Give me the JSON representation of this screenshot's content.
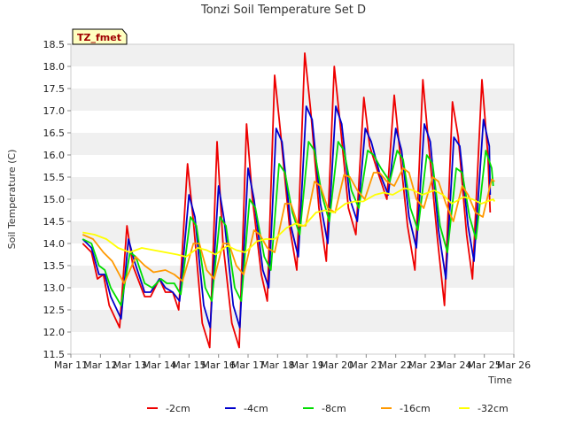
{
  "chart_data": {
    "type": "line",
    "title": "Tonzi Soil Temperature Set D",
    "xlabel": "Time",
    "ylabel": "Soil Temperature (C)",
    "badge": "TZ_fmet",
    "xlim": [
      11,
      26
    ],
    "ylim": [
      11.5,
      18.5
    ],
    "x_ticks": [
      11,
      12,
      13,
      14,
      15,
      16,
      17,
      18,
      19,
      20,
      21,
      22,
      23,
      24,
      25,
      26
    ],
    "x_tick_labels": [
      "Mar 11",
      "Mar 12",
      "Mar 13",
      "Mar 14",
      "Mar 15",
      "Mar 16",
      "Mar 17",
      "Mar 18",
      "Mar 19",
      "Mar 20",
      "Mar 21",
      "Mar 22",
      "Mar 23",
      "Mar 24",
      "Mar 25",
      "Mar 26"
    ],
    "y_ticks": [
      11.5,
      12.0,
      12.5,
      13.0,
      13.5,
      14.0,
      14.5,
      15.0,
      15.5,
      16.0,
      16.5,
      17.0,
      17.5,
      18.0,
      18.5
    ],
    "y_tick_labels": [
      "11.5",
      "12.0",
      "12.5",
      "13.0",
      "13.5",
      "14.0",
      "14.5",
      "15.0",
      "15.5",
      "16.0",
      "16.5",
      "17.0",
      "17.5",
      "18.0",
      "18.5"
    ],
    "grid": "horizontal bands",
    "legend_position": "bottom",
    "series": [
      {
        "name": "-2cm",
        "color": "#ee0000",
        "points": [
          [
            11.4,
            14.0
          ],
          [
            11.7,
            13.8
          ],
          [
            11.9,
            13.2
          ],
          [
            12.1,
            13.3
          ],
          [
            12.3,
            12.6
          ],
          [
            12.65,
            12.1
          ],
          [
            12.9,
            14.4
          ],
          [
            13.1,
            13.5
          ],
          [
            13.5,
            12.8
          ],
          [
            13.7,
            12.8
          ],
          [
            14.0,
            13.2
          ],
          [
            14.2,
            12.9
          ],
          [
            14.45,
            12.9
          ],
          [
            14.65,
            12.5
          ],
          [
            14.95,
            15.8
          ],
          [
            15.15,
            14.5
          ],
          [
            15.45,
            12.2
          ],
          [
            15.7,
            11.65
          ],
          [
            15.95,
            16.3
          ],
          [
            16.15,
            14.0
          ],
          [
            16.45,
            12.2
          ],
          [
            16.7,
            11.65
          ],
          [
            16.95,
            16.7
          ],
          [
            17.15,
            15.0
          ],
          [
            17.45,
            13.3
          ],
          [
            17.65,
            12.7
          ],
          [
            17.9,
            17.8
          ],
          [
            18.1,
            16.5
          ],
          [
            18.4,
            14.4
          ],
          [
            18.65,
            13.4
          ],
          [
            18.92,
            18.3
          ],
          [
            19.12,
            17.0
          ],
          [
            19.4,
            14.8
          ],
          [
            19.65,
            13.6
          ],
          [
            19.92,
            18.0
          ],
          [
            20.12,
            16.7
          ],
          [
            20.4,
            14.8
          ],
          [
            20.65,
            14.2
          ],
          [
            20.92,
            17.3
          ],
          [
            21.12,
            16.2
          ],
          [
            21.4,
            15.6
          ],
          [
            21.7,
            15.0
          ],
          [
            21.95,
            17.35
          ],
          [
            22.15,
            16.0
          ],
          [
            22.4,
            14.4
          ],
          [
            22.65,
            13.4
          ],
          [
            22.92,
            17.7
          ],
          [
            23.12,
            16.2
          ],
          [
            23.4,
            14.2
          ],
          [
            23.65,
            12.6
          ],
          [
            23.92,
            17.2
          ],
          [
            24.12,
            16.4
          ],
          [
            24.4,
            14.2
          ],
          [
            24.6,
            13.2
          ],
          [
            24.92,
            17.7
          ],
          [
            25.12,
            16.0
          ],
          [
            25.2,
            14.7
          ]
        ]
      },
      {
        "name": "-4cm",
        "color": "#0000cc",
        "points": [
          [
            11.4,
            14.1
          ],
          [
            11.7,
            13.9
          ],
          [
            11.95,
            13.3
          ],
          [
            12.15,
            13.3
          ],
          [
            12.35,
            12.8
          ],
          [
            12.7,
            12.3
          ],
          [
            12.95,
            14.1
          ],
          [
            13.15,
            13.6
          ],
          [
            13.5,
            12.9
          ],
          [
            13.7,
            12.9
          ],
          [
            14.0,
            13.2
          ],
          [
            14.2,
            13.0
          ],
          [
            14.45,
            12.9
          ],
          [
            14.68,
            12.7
          ],
          [
            15.0,
            15.1
          ],
          [
            15.2,
            14.6
          ],
          [
            15.5,
            12.6
          ],
          [
            15.72,
            12.1
          ],
          [
            16.0,
            15.3
          ],
          [
            16.2,
            14.5
          ],
          [
            16.5,
            12.6
          ],
          [
            16.72,
            12.1
          ],
          [
            17.0,
            15.7
          ],
          [
            17.2,
            15.0
          ],
          [
            17.5,
            13.4
          ],
          [
            17.7,
            13.0
          ],
          [
            17.95,
            16.6
          ],
          [
            18.15,
            16.3
          ],
          [
            18.45,
            14.4
          ],
          [
            18.7,
            13.7
          ],
          [
            18.97,
            17.1
          ],
          [
            19.17,
            16.8
          ],
          [
            19.45,
            14.9
          ],
          [
            19.7,
            14.0
          ],
          [
            19.97,
            17.1
          ],
          [
            20.17,
            16.7
          ],
          [
            20.45,
            15.0
          ],
          [
            20.7,
            14.5
          ],
          [
            20.97,
            16.6
          ],
          [
            21.17,
            16.3
          ],
          [
            21.45,
            15.6
          ],
          [
            21.75,
            15.1
          ],
          [
            22.0,
            16.6
          ],
          [
            22.2,
            16.1
          ],
          [
            22.45,
            14.6
          ],
          [
            22.7,
            13.9
          ],
          [
            22.97,
            16.7
          ],
          [
            23.17,
            16.3
          ],
          [
            23.45,
            14.3
          ],
          [
            23.7,
            13.2
          ],
          [
            23.97,
            16.4
          ],
          [
            24.17,
            16.2
          ],
          [
            24.45,
            14.4
          ],
          [
            24.65,
            13.6
          ],
          [
            24.97,
            16.8
          ],
          [
            25.17,
            16.2
          ],
          [
            25.2,
            15.1
          ]
        ]
      },
      {
        "name": "-8cm",
        "color": "#00dd00",
        "points": [
          [
            11.4,
            14.1
          ],
          [
            11.7,
            14.0
          ],
          [
            11.95,
            13.5
          ],
          [
            12.15,
            13.4
          ],
          [
            12.35,
            13.0
          ],
          [
            12.7,
            12.6
          ],
          [
            13.0,
            13.8
          ],
          [
            13.2,
            13.7
          ],
          [
            13.5,
            13.1
          ],
          [
            13.75,
            13.0
          ],
          [
            14.05,
            13.2
          ],
          [
            14.25,
            13.1
          ],
          [
            14.5,
            13.1
          ],
          [
            14.72,
            12.85
          ],
          [
            15.05,
            14.6
          ],
          [
            15.25,
            14.4
          ],
          [
            15.55,
            13.0
          ],
          [
            15.77,
            12.7
          ],
          [
            16.05,
            14.6
          ],
          [
            16.25,
            14.4
          ],
          [
            16.55,
            13.0
          ],
          [
            16.77,
            12.7
          ],
          [
            17.05,
            15.0
          ],
          [
            17.25,
            14.8
          ],
          [
            17.55,
            13.7
          ],
          [
            17.77,
            13.4
          ],
          [
            18.05,
            15.8
          ],
          [
            18.25,
            15.6
          ],
          [
            18.5,
            14.7
          ],
          [
            18.75,
            14.2
          ],
          [
            19.05,
            16.3
          ],
          [
            19.25,
            16.1
          ],
          [
            19.5,
            15.1
          ],
          [
            19.75,
            14.5
          ],
          [
            20.05,
            16.3
          ],
          [
            20.25,
            16.1
          ],
          [
            20.5,
            15.2
          ],
          [
            20.75,
            14.8
          ],
          [
            21.05,
            16.1
          ],
          [
            21.25,
            16.0
          ],
          [
            21.5,
            15.7
          ],
          [
            21.8,
            15.4
          ],
          [
            22.05,
            16.1
          ],
          [
            22.25,
            15.9
          ],
          [
            22.5,
            14.8
          ],
          [
            22.75,
            14.3
          ],
          [
            23.05,
            16.0
          ],
          [
            23.25,
            15.8
          ],
          [
            23.5,
            14.4
          ],
          [
            23.75,
            13.8
          ],
          [
            24.05,
            15.7
          ],
          [
            24.25,
            15.6
          ],
          [
            24.5,
            14.6
          ],
          [
            24.72,
            14.1
          ],
          [
            25.05,
            16.1
          ],
          [
            25.25,
            15.7
          ],
          [
            25.3,
            15.3
          ]
        ]
      },
      {
        "name": "-16cm",
        "color": "#ff9900",
        "points": [
          [
            11.4,
            14.2
          ],
          [
            11.75,
            14.1
          ],
          [
            12.1,
            13.8
          ],
          [
            12.4,
            13.6
          ],
          [
            12.8,
            13.1
          ],
          [
            13.2,
            13.7
          ],
          [
            13.5,
            13.5
          ],
          [
            13.8,
            13.35
          ],
          [
            14.2,
            13.4
          ],
          [
            14.5,
            13.3
          ],
          [
            14.78,
            13.15
          ],
          [
            15.15,
            14.0
          ],
          [
            15.35,
            14.0
          ],
          [
            15.6,
            13.4
          ],
          [
            15.85,
            13.2
          ],
          [
            16.15,
            14.0
          ],
          [
            16.35,
            14.0
          ],
          [
            16.6,
            13.5
          ],
          [
            16.85,
            13.3
          ],
          [
            17.2,
            14.3
          ],
          [
            17.4,
            14.2
          ],
          [
            17.65,
            13.9
          ],
          [
            17.9,
            13.8
          ],
          [
            18.25,
            14.9
          ],
          [
            18.45,
            14.9
          ],
          [
            18.7,
            14.4
          ],
          [
            18.95,
            14.4
          ],
          [
            19.25,
            15.4
          ],
          [
            19.45,
            15.3
          ],
          [
            19.7,
            14.8
          ],
          [
            19.95,
            14.7
          ],
          [
            20.25,
            15.55
          ],
          [
            20.45,
            15.5
          ],
          [
            20.7,
            15.2
          ],
          [
            20.95,
            15.0
          ],
          [
            21.25,
            15.6
          ],
          [
            21.45,
            15.6
          ],
          [
            21.7,
            15.4
          ],
          [
            21.95,
            15.3
          ],
          [
            22.25,
            15.7
          ],
          [
            22.45,
            15.6
          ],
          [
            22.7,
            15.0
          ],
          [
            22.95,
            14.8
          ],
          [
            23.25,
            15.5
          ],
          [
            23.45,
            15.4
          ],
          [
            23.7,
            14.9
          ],
          [
            23.95,
            14.5
          ],
          [
            24.25,
            15.3
          ],
          [
            24.45,
            15.1
          ],
          [
            24.7,
            14.7
          ],
          [
            24.95,
            14.6
          ],
          [
            25.25,
            15.45
          ],
          [
            25.35,
            15.4
          ]
        ]
      },
      {
        "name": "-32cm",
        "color": "#ffff00",
        "points": [
          [
            11.4,
            14.25
          ],
          [
            11.8,
            14.2
          ],
          [
            12.2,
            14.1
          ],
          [
            12.6,
            13.9
          ],
          [
            13.0,
            13.8
          ],
          [
            13.4,
            13.9
          ],
          [
            13.8,
            13.85
          ],
          [
            14.2,
            13.8
          ],
          [
            14.6,
            13.75
          ],
          [
            14.9,
            13.7
          ],
          [
            15.3,
            13.9
          ],
          [
            15.6,
            13.85
          ],
          [
            15.9,
            13.75
          ],
          [
            16.3,
            13.95
          ],
          [
            16.6,
            13.85
          ],
          [
            16.9,
            13.8
          ],
          [
            17.3,
            14.05
          ],
          [
            17.6,
            14.1
          ],
          [
            17.9,
            14.1
          ],
          [
            18.3,
            14.35
          ],
          [
            18.6,
            14.45
          ],
          [
            18.9,
            14.4
          ],
          [
            19.3,
            14.7
          ],
          [
            19.6,
            14.75
          ],
          [
            19.9,
            14.7
          ],
          [
            20.3,
            14.9
          ],
          [
            20.6,
            14.95
          ],
          [
            20.9,
            14.95
          ],
          [
            21.3,
            15.1
          ],
          [
            21.6,
            15.15
          ],
          [
            21.9,
            15.1
          ],
          [
            22.3,
            15.25
          ],
          [
            22.6,
            15.2
          ],
          [
            22.9,
            15.1
          ],
          [
            23.3,
            15.2
          ],
          [
            23.6,
            15.1
          ],
          [
            23.9,
            14.9
          ],
          [
            24.3,
            15.05
          ],
          [
            24.6,
            15.0
          ],
          [
            24.9,
            14.9
          ],
          [
            25.3,
            15.0
          ],
          [
            25.35,
            14.95
          ]
        ]
      }
    ]
  }
}
